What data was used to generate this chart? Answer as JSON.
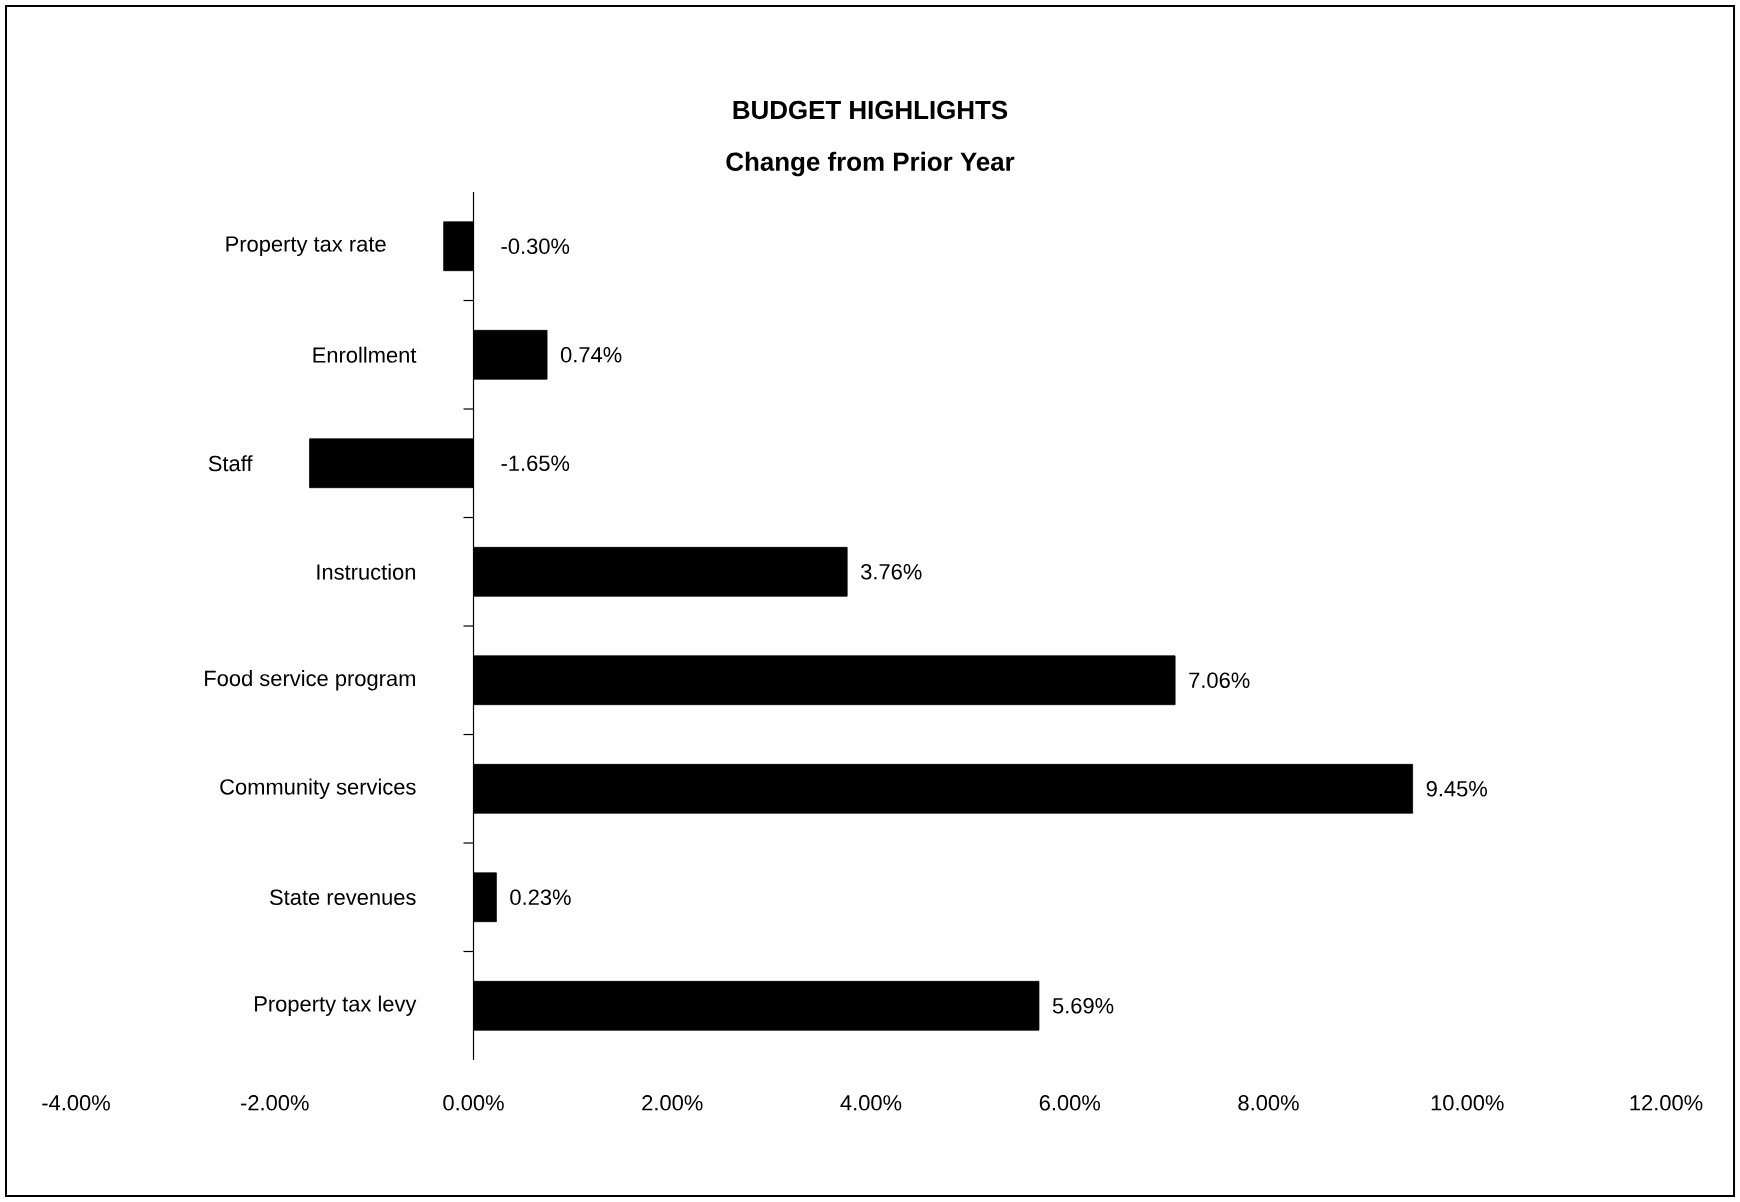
{
  "chart_data": {
    "type": "bar",
    "orientation": "horizontal",
    "title": "BUDGET HIGHLIGHTS",
    "subtitle": "Change from Prior Year",
    "categories": [
      "Property tax rate",
      "Enrollment",
      "Staff",
      "Instruction",
      "Food service program",
      "Community services",
      "State revenues",
      "Property tax levy"
    ],
    "values": [
      -0.3,
      0.74,
      -1.65,
      3.76,
      7.06,
      9.45,
      0.23,
      5.69
    ],
    "value_labels": [
      "-0.30%",
      "0.74%",
      "-1.65%",
      "3.76%",
      "7.06%",
      "9.45%",
      "0.23%",
      "5.69%"
    ],
    "color": "#000000",
    "xlim": [
      -4,
      12
    ],
    "xticks": [
      {
        "value": -4,
        "label": "-4.00%"
      },
      {
        "value": -2,
        "label": "-2.00%"
      },
      {
        "value": 0,
        "label": "0.00%"
      },
      {
        "value": 2,
        "label": "2.00%"
      },
      {
        "value": 4,
        "label": "4.00%"
      },
      {
        "value": 6,
        "label": "6.00%"
      },
      {
        "value": 8,
        "label": "8.00%"
      },
      {
        "value": 10,
        "label": "10.00%"
      },
      {
        "value": 12,
        "label": "12.00%"
      }
    ]
  }
}
